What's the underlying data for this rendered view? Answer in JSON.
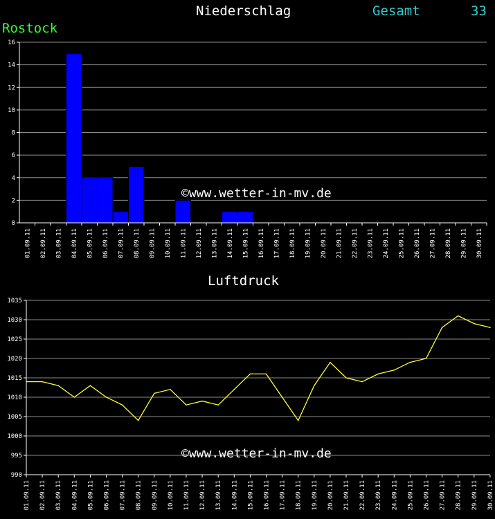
{
  "header": {
    "title": "Niederschlag",
    "gesamt_label": "Gesamt",
    "gesamt_value": "33",
    "station": "Rostock"
  },
  "watermark": "©www.wetter-in-mv.de",
  "chart_data": [
    {
      "type": "bar",
      "title": "Niederschlag",
      "categories": [
        "01.09.11",
        "02.09.11",
        "03.09.11",
        "04.09.11",
        "05.09.11",
        "06.09.11",
        "07.09.11",
        "08.09.11",
        "09.09.11",
        "10.09.11",
        "11.09.11",
        "12.09.11",
        "13.09.11",
        "14.09.11",
        "15.09.11",
        "16.09.11",
        "17.09.11",
        "18.09.11",
        "19.09.11",
        "20.09.11",
        "21.09.11",
        "22.09.11",
        "23.09.11",
        "24.09.11",
        "25.09.11",
        "26.09.11",
        "27.09.11",
        "28.09.11",
        "29.09.11",
        "30.09.11"
      ],
      "values": [
        0,
        0,
        0,
        15,
        4,
        4,
        1,
        5,
        0,
        0,
        2,
        0,
        0,
        1,
        1,
        0,
        0,
        0,
        0,
        0,
        0,
        0,
        0,
        0,
        0,
        0,
        0,
        0,
        0,
        0
      ],
      "ylim": [
        0,
        16
      ],
      "yticks": [
        0,
        2,
        4,
        6,
        8,
        10,
        12,
        14,
        16
      ],
      "grid": true,
      "bar_color": "#0000ff"
    },
    {
      "type": "line",
      "title": "Luftdruck",
      "categories": [
        "01.09.11",
        "02.09.11",
        "03.09.11",
        "04.09.11",
        "05.09.11",
        "06.09.11",
        "07.09.11",
        "08.09.11",
        "09.09.11",
        "10.09.11",
        "11.09.11",
        "12.09.11",
        "13.09.11",
        "14.09.11",
        "15.09.11",
        "16.09.11",
        "17.09.11",
        "18.09.11",
        "19.09.11",
        "20.09.11",
        "21.09.11",
        "22.09.11",
        "23.09.11",
        "24.09.11",
        "25.09.11",
        "26.09.11",
        "27.09.11",
        "28.09.11",
        "29.09.11",
        "30.09.11"
      ],
      "values": [
        1014,
        1014,
        1013,
        1010,
        1013,
        1010,
        1008,
        1004,
        1011,
        1012,
        1008,
        1009,
        1008,
        1012,
        1016,
        1016,
        1010,
        1004,
        1013,
        1019,
        1015,
        1014,
        1016,
        1017,
        1019,
        1020,
        1028,
        1031,
        1029,
        1028
      ],
      "ylim": [
        990,
        1035
      ],
      "yticks": [
        990,
        995,
        1000,
        1005,
        1010,
        1015,
        1020,
        1025,
        1030,
        1035
      ],
      "grid": true,
      "line_color": "#ffff33"
    }
  ]
}
